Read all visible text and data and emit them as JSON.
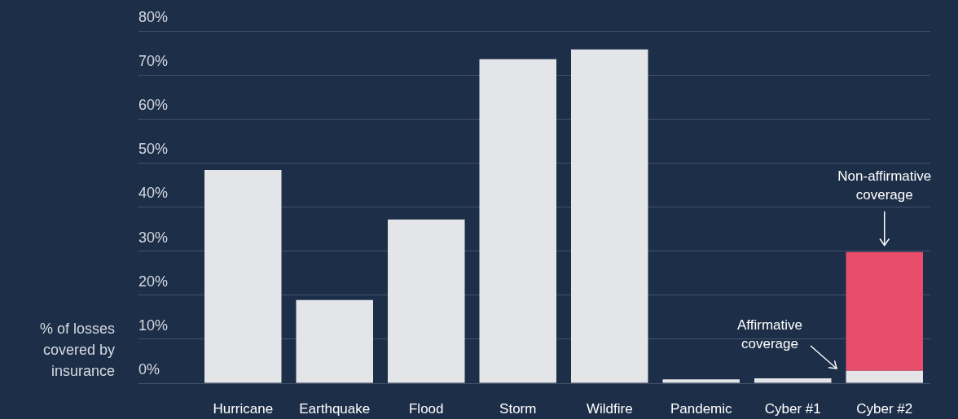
{
  "chart_data": {
    "type": "bar",
    "stacked": true,
    "ylabel": "% of losses covered by insurance",
    "categories": [
      "Hurricane",
      "Earthquake",
      "Flood",
      "Storm",
      "Wildfire",
      "Pandemic",
      "Cyber #1",
      "Cyber #2"
    ],
    "series": [
      {
        "color": "#e3e5e8",
        "values": [
          48.4,
          18.9,
          37.2,
          73.6,
          75.8,
          0.9,
          1.1,
          2.8
        ]
      },
      {
        "color": "#e84d6b",
        "values": [
          null,
          null,
          null,
          null,
          null,
          null,
          null,
          27.0
        ]
      }
    ],
    "ylim": [
      0,
      80
    ],
    "yticks": [
      {
        "value": 0,
        "label": "0%"
      },
      {
        "value": 10,
        "label": "10%"
      },
      {
        "value": 20,
        "label": "20%"
      },
      {
        "value": 30,
        "label": "30%"
      },
      {
        "value": 40,
        "label": "40%"
      },
      {
        "value": 50,
        "label": "50%"
      },
      {
        "value": 60,
        "label": "60%"
      },
      {
        "value": 70,
        "label": "70%"
      },
      {
        "value": 80,
        "label": "80%"
      }
    ],
    "grid": "y",
    "legend": false,
    "annotations": [
      "Affirmative coverage",
      {
        "text": "Non-affirmative coverage",
        "x": "Cyber #2",
        "y": 29.8
      }
    ]
  }
}
